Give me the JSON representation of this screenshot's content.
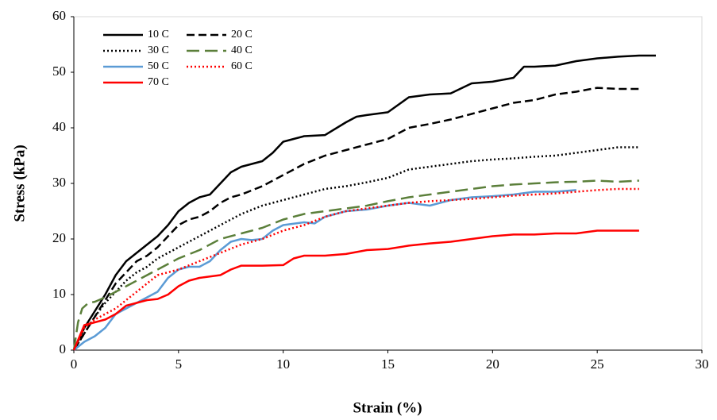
{
  "chart_data": {
    "type": "line",
    "x_label": "Strain (%)",
    "y_label": "Stress (kPa)",
    "xlim": [
      0,
      30
    ],
    "xticks": [
      0,
      5,
      10,
      15,
      20,
      25,
      30
    ],
    "ylim": [
      0,
      60
    ],
    "yticks": [
      0,
      10,
      20,
      30,
      40,
      50,
      60
    ],
    "grid": false,
    "legend": "top-left",
    "series": [
      {
        "name": "10 C",
        "color": "#000000",
        "style": "solid",
        "x": [
          0,
          0.5,
          1,
          1.5,
          2,
          2.5,
          3,
          3.5,
          4,
          4.5,
          5,
          5.5,
          6,
          6.5,
          7,
          7.5,
          8,
          8.5,
          9,
          9.5,
          10,
          10.5,
          11,
          12,
          13,
          13.5,
          14,
          15,
          16,
          17,
          18,
          19,
          20,
          21,
          21.5,
          22,
          23,
          24,
          25,
          26,
          27,
          27.8
        ],
        "values": [
          0,
          4,
          7,
          10,
          13.5,
          16,
          17.5,
          19,
          20.5,
          22.5,
          25,
          26.5,
          27.5,
          28,
          30,
          32,
          33,
          33.5,
          34,
          35.5,
          37.5,
          38,
          38.5,
          38.7,
          41,
          42,
          42.3,
          42.8,
          45.5,
          46,
          46.2,
          48,
          48.3,
          49,
          51,
          51,
          51.2,
          52,
          52.5,
          52.8,
          53,
          53
        ]
      },
      {
        "name": "20 C",
        "color": "#000000",
        "style": "dash",
        "x": [
          0,
          0.5,
          1,
          1.5,
          2,
          2.5,
          3,
          3.5,
          4,
          4.5,
          5,
          5.5,
          6,
          6.5,
          7,
          7.5,
          8,
          9,
          10,
          11,
          12,
          13,
          14,
          15,
          16,
          17,
          18,
          19,
          20,
          21,
          22,
          23,
          24,
          25,
          26,
          27
        ],
        "values": [
          0,
          3,
          6,
          9,
          12,
          14,
          16,
          17,
          18.5,
          20.5,
          22.5,
          23.5,
          24,
          25,
          26.5,
          27.5,
          28,
          29.5,
          31.5,
          33.5,
          35,
          36,
          37,
          38,
          40,
          40.7,
          41.5,
          42.5,
          43.5,
          44.5,
          45,
          46,
          46.5,
          47.2,
          47,
          47
        ]
      },
      {
        "name": "30 C",
        "color": "#000000",
        "style": "dot",
        "x": [
          0,
          0.5,
          1,
          1.5,
          2,
          2.5,
          3,
          3.5,
          4,
          5,
          6,
          7,
          8,
          9,
          10,
          11,
          12,
          13,
          14,
          15,
          16,
          17,
          18,
          19,
          20,
          21,
          22,
          23,
          24,
          25,
          26,
          27
        ],
        "values": [
          0,
          3,
          6,
          8.5,
          10.5,
          12.5,
          14,
          15,
          16.5,
          18.5,
          20.5,
          22.5,
          24.5,
          26,
          27,
          28,
          29,
          29.5,
          30.2,
          31,
          32.5,
          33,
          33.5,
          34,
          34.3,
          34.5,
          34.8,
          35,
          35.5,
          36,
          36.5,
          36.5
        ]
      },
      {
        "name": "40 C",
        "color": "#5b7f3a",
        "style": "longdash",
        "x": [
          0,
          0.2,
          0.4,
          0.7,
          1,
          1.5,
          2,
          2.5,
          3,
          3.5,
          4,
          5,
          6,
          7,
          8,
          9,
          10,
          11,
          12,
          13,
          14,
          15,
          16,
          17,
          18,
          19,
          20,
          21,
          22,
          23,
          24,
          25,
          26,
          27
        ],
        "values": [
          0,
          5,
          7.5,
          8.5,
          8.7,
          9.5,
          10.5,
          11.5,
          12.5,
          13.5,
          14.5,
          16.5,
          18,
          20,
          21,
          22,
          23.5,
          24.5,
          25,
          25.5,
          26,
          26.8,
          27.5,
          28,
          28.5,
          29,
          29.5,
          29.8,
          30,
          30.2,
          30.3,
          30.5,
          30.3,
          30.5
        ]
      },
      {
        "name": "50 C",
        "color": "#5b9bd5",
        "style": "solid",
        "x": [
          0,
          0.5,
          1,
          1.5,
          2,
          2.5,
          3,
          3.5,
          4,
          4.5,
          5,
          5.5,
          6,
          6.5,
          7,
          7.5,
          8,
          8.5,
          9,
          9.5,
          10,
          11,
          11.5,
          12,
          13,
          14,
          15,
          16,
          17,
          18,
          19,
          20,
          21,
          22,
          23,
          24
        ],
        "values": [
          0,
          1.5,
          2.5,
          4,
          6.5,
          7.5,
          8.5,
          9.5,
          10.5,
          13,
          14.5,
          15,
          15,
          16,
          18,
          19.5,
          20,
          19.8,
          20,
          21.5,
          22.5,
          23,
          22.8,
          24,
          25,
          25.3,
          26,
          26.5,
          26,
          27,
          27.5,
          27.7,
          28,
          28.5,
          28.5,
          28.8
        ]
      },
      {
        "name": "60 C",
        "color": "#ff0000",
        "style": "dot",
        "x": [
          0,
          0.5,
          1,
          1.5,
          2,
          2.5,
          3,
          3.5,
          4,
          5,
          6,
          7,
          8,
          9,
          10,
          11,
          12,
          13,
          14,
          15,
          16,
          17,
          18,
          19,
          20,
          21,
          22,
          23,
          24,
          25,
          26,
          27
        ],
        "values": [
          0,
          4,
          5.5,
          6.5,
          7.5,
          9,
          10.5,
          12,
          13.5,
          14.5,
          16,
          17.5,
          19,
          20,
          21.5,
          22.5,
          24,
          25,
          25.5,
          26,
          26.5,
          26.8,
          27,
          27.2,
          27.5,
          27.8,
          28,
          28.2,
          28.5,
          28.8,
          29,
          29
        ]
      },
      {
        "name": "70 C",
        "color": "#ff0000",
        "style": "solid",
        "x": [
          0,
          0.5,
          1,
          1.5,
          2,
          2.5,
          3,
          3.5,
          4,
          4.5,
          5,
          5.5,
          6,
          7,
          7.5,
          8,
          9,
          10,
          10.5,
          11,
          12,
          13,
          14,
          15,
          16,
          17,
          18,
          19,
          20,
          21,
          22,
          23,
          24,
          25,
          26,
          27
        ],
        "values": [
          0,
          4.5,
          5,
          5.5,
          6.5,
          8,
          8.5,
          9,
          9.2,
          10,
          11.5,
          12.5,
          13,
          13.5,
          14.5,
          15.2,
          15.2,
          15.3,
          16.5,
          17,
          17,
          17.3,
          18,
          18.2,
          18.8,
          19.2,
          19.5,
          20,
          20.5,
          20.8,
          20.8,
          21,
          21,
          21.5,
          21.5,
          21.5
        ]
      }
    ]
  }
}
